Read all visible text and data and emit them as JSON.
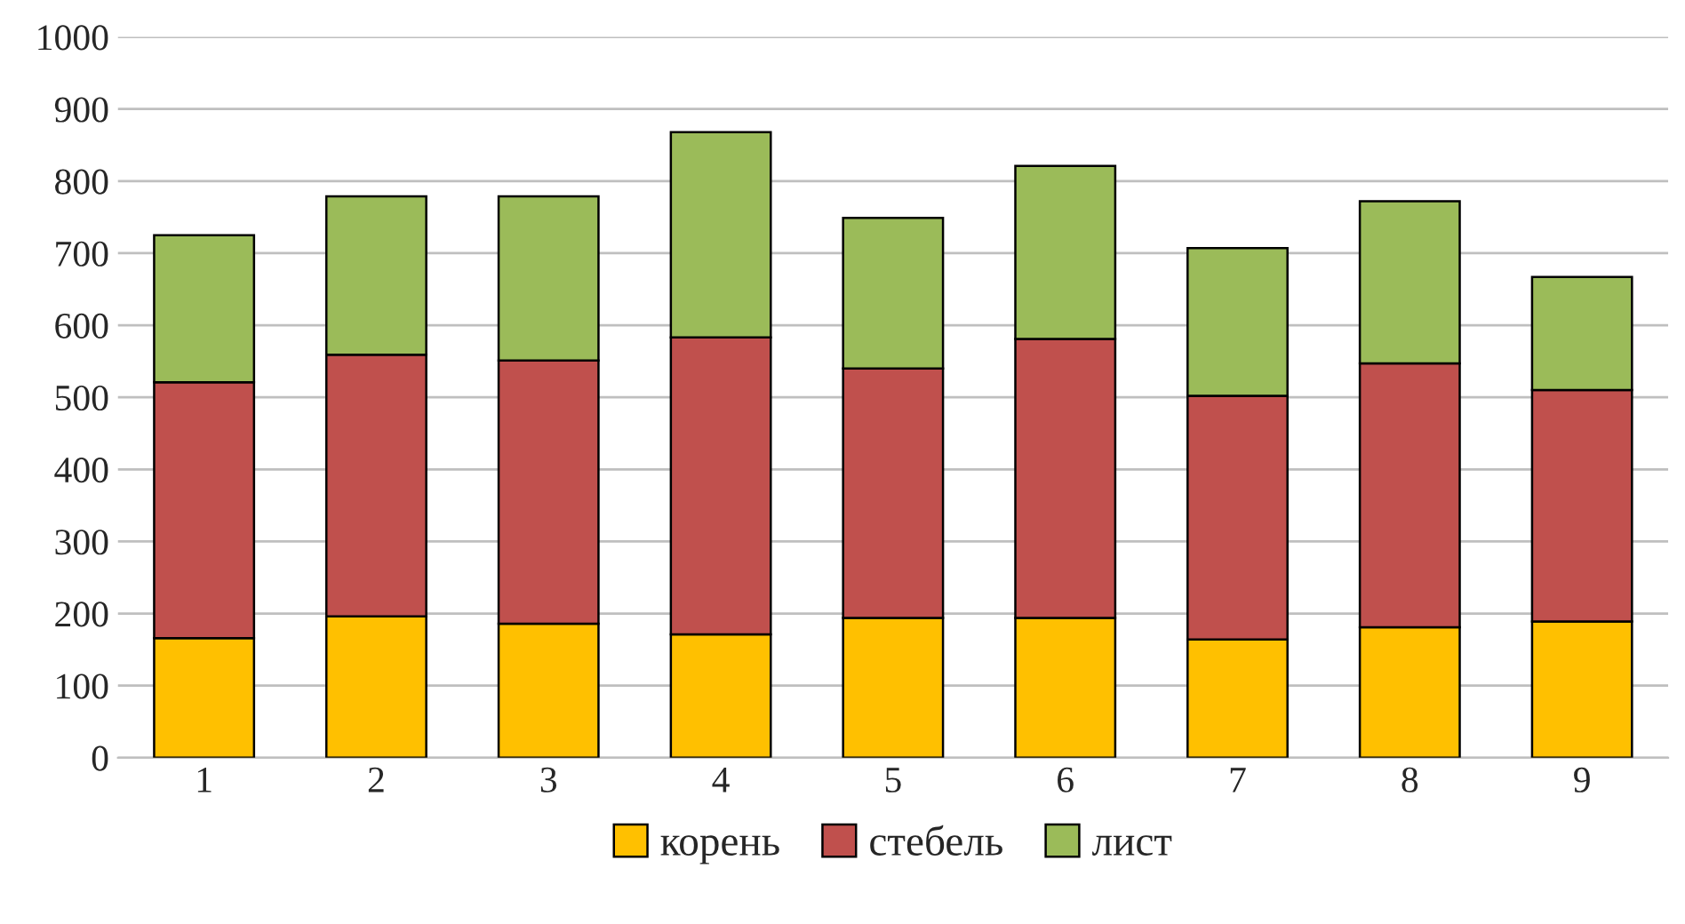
{
  "chart_data": {
    "type": "bar",
    "stacked": true,
    "categories": [
      "1",
      "2",
      "3",
      "4",
      "5",
      "6",
      "7",
      "8",
      "9"
    ],
    "series": [
      {
        "name": "корень",
        "color": "#ffc000",
        "values": [
          166,
          196,
          186,
          171,
          194,
          194,
          164,
          181,
          189
        ]
      },
      {
        "name": "стебель",
        "color": "#c0504d",
        "values": [
          355,
          363,
          365,
          412,
          346,
          387,
          338,
          366,
          321
        ]
      },
      {
        "name": "лист",
        "color": "#9bbb59",
        "values": [
          204,
          220,
          228,
          285,
          209,
          240,
          205,
          225,
          157
        ]
      }
    ],
    "ylim": [
      0,
      1000
    ],
    "yticks": [
      0,
      100,
      200,
      300,
      400,
      500,
      600,
      700,
      800,
      900,
      1000
    ],
    "grid": "y",
    "legend": "bottom"
  }
}
